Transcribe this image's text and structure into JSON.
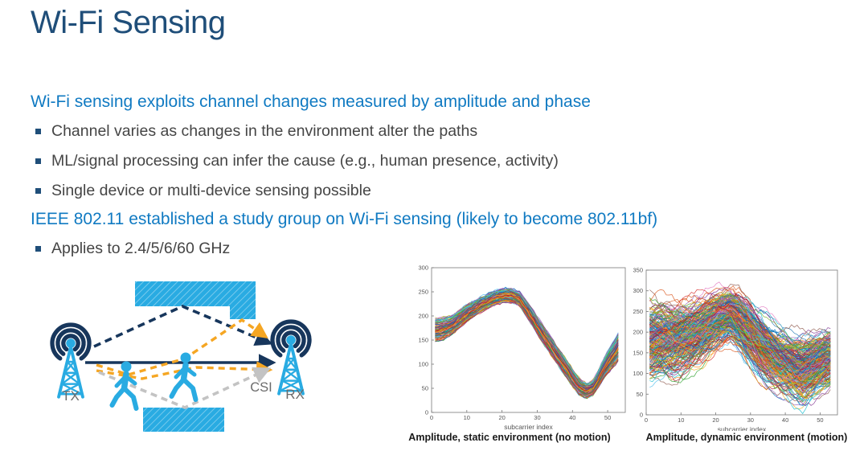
{
  "slide": {
    "title": "Wi-Fi Sensing",
    "lines": [
      {
        "type": "header",
        "text": "Wi-Fi sensing exploits channel changes measured by amplitude and phase"
      },
      {
        "type": "bullet",
        "text": "Channel varies as changes in the environment alter the paths"
      },
      {
        "type": "bullet",
        "text": "ML/signal processing can infer the cause (e.g., human presence, activity)"
      },
      {
        "type": "bullet",
        "text": "Single device or multi-device sensing possible"
      },
      {
        "type": "header",
        "text": "IEEE 802.11 established a study group on Wi-Fi sensing (likely to become 802.11bf)"
      },
      {
        "type": "bullet",
        "text": "Applies to 2.4/5/6/60 GHz"
      }
    ]
  },
  "diagram": {
    "tx_label": "TX",
    "rx_label": "RX",
    "csi_label": "CSI",
    "paths": [
      {
        "name": "ceiling-reflection",
        "style": "navy-dashed"
      },
      {
        "name": "line-of-sight",
        "style": "navy-solid"
      },
      {
        "name": "human-reflection-1",
        "style": "orange-dashed"
      },
      {
        "name": "human-reflection-2",
        "style": "orange-dashed"
      },
      {
        "name": "floor-reflection",
        "style": "gray-dashed"
      }
    ]
  },
  "colors": {
    "title_navy": "#1f4e79",
    "header_blue": "#107ac2",
    "body_gray": "#454545",
    "bullet_navy": "#1f4e79",
    "light_blue": "#29abe2",
    "diagram_navy": "#17365c",
    "orange": "#f5a623",
    "gray_dash": "#c3c3c3",
    "label_gray": "#6b6b6b",
    "axis_gray": "#555555",
    "caption_black": "#1a1a1a"
  },
  "trace_palette": [
    "#0072BD",
    "#D95319",
    "#EDB120",
    "#7E2F8E",
    "#77AC30",
    "#4DBEEE",
    "#A2142F",
    "#8c564b",
    "#e377c2",
    "#2ca02c",
    "#1f77b4",
    "#ff7f0e",
    "#d62728",
    "#9467bd",
    "#bcbd22",
    "#17becf"
  ],
  "chart_data": [
    {
      "type": "line",
      "title": "Amplitude, static environment (no motion)",
      "xlabel": "subcarrier index",
      "ylabel": "",
      "xlim": [
        0,
        55
      ],
      "ylim": [
        0,
        300
      ],
      "xticks": [
        0,
        10,
        20,
        30,
        40,
        50
      ],
      "yticks": [
        0,
        50,
        100,
        150,
        200,
        250,
        300
      ],
      "grid": false,
      "legend": "none",
      "num_traces": 120,
      "spread_style": "static",
      "x_control": [
        1,
        3,
        6,
        10,
        14,
        18,
        21,
        23,
        25,
        28,
        31,
        35,
        39,
        42,
        44,
        46,
        49,
        53
      ],
      "mean": [
        170,
        172,
        182,
        205,
        224,
        238,
        243,
        242,
        235,
        203,
        168,
        125,
        82,
        52,
        44,
        52,
        92,
        135
      ],
      "halfwidth": [
        25,
        25,
        20,
        18,
        16,
        15,
        15,
        15,
        15,
        18,
        20,
        20,
        20,
        18,
        16,
        16,
        22,
        30
      ],
      "note": "~120 overlapping CSI amplitude traces forming a tight band: ~145-195 at index 1, peak ~225-255 near index 22, trough ~25-60 near index 43, rising to ~105-165 at index 53"
    },
    {
      "type": "line",
      "title": "Amplitude, dynamic environment (motion)",
      "xlabel": "subcarrier index",
      "ylabel": "",
      "xlim": [
        0,
        55
      ],
      "ylim": [
        0,
        350
      ],
      "xticks": [
        0,
        10,
        20,
        30,
        40,
        50
      ],
      "yticks": [
        0,
        50,
        100,
        150,
        200,
        250,
        300,
        350
      ],
      "grid": false,
      "legend": "none",
      "num_traces": 260,
      "spread_style": "dynamic",
      "x_control": [
        1,
        4,
        8,
        12,
        16,
        20,
        24,
        27,
        30,
        34,
        38,
        42,
        45,
        48,
        51,
        53
      ],
      "mean": [
        180,
        185,
        182,
        190,
        205,
        228,
        242,
        225,
        195,
        155,
        132,
        118,
        110,
        122,
        135,
        140
      ],
      "halfwidth": [
        115,
        110,
        105,
        100,
        95,
        85,
        78,
        85,
        95,
        100,
        95,
        95,
        100,
        90,
        82,
        80
      ],
      "note": "~260 heavily scattered CSI amplitude traces spanning ~60-300 at index 1, broad peak up to ~310 near index 25, wide trough reaching near 0 around index 44-51"
    }
  ]
}
